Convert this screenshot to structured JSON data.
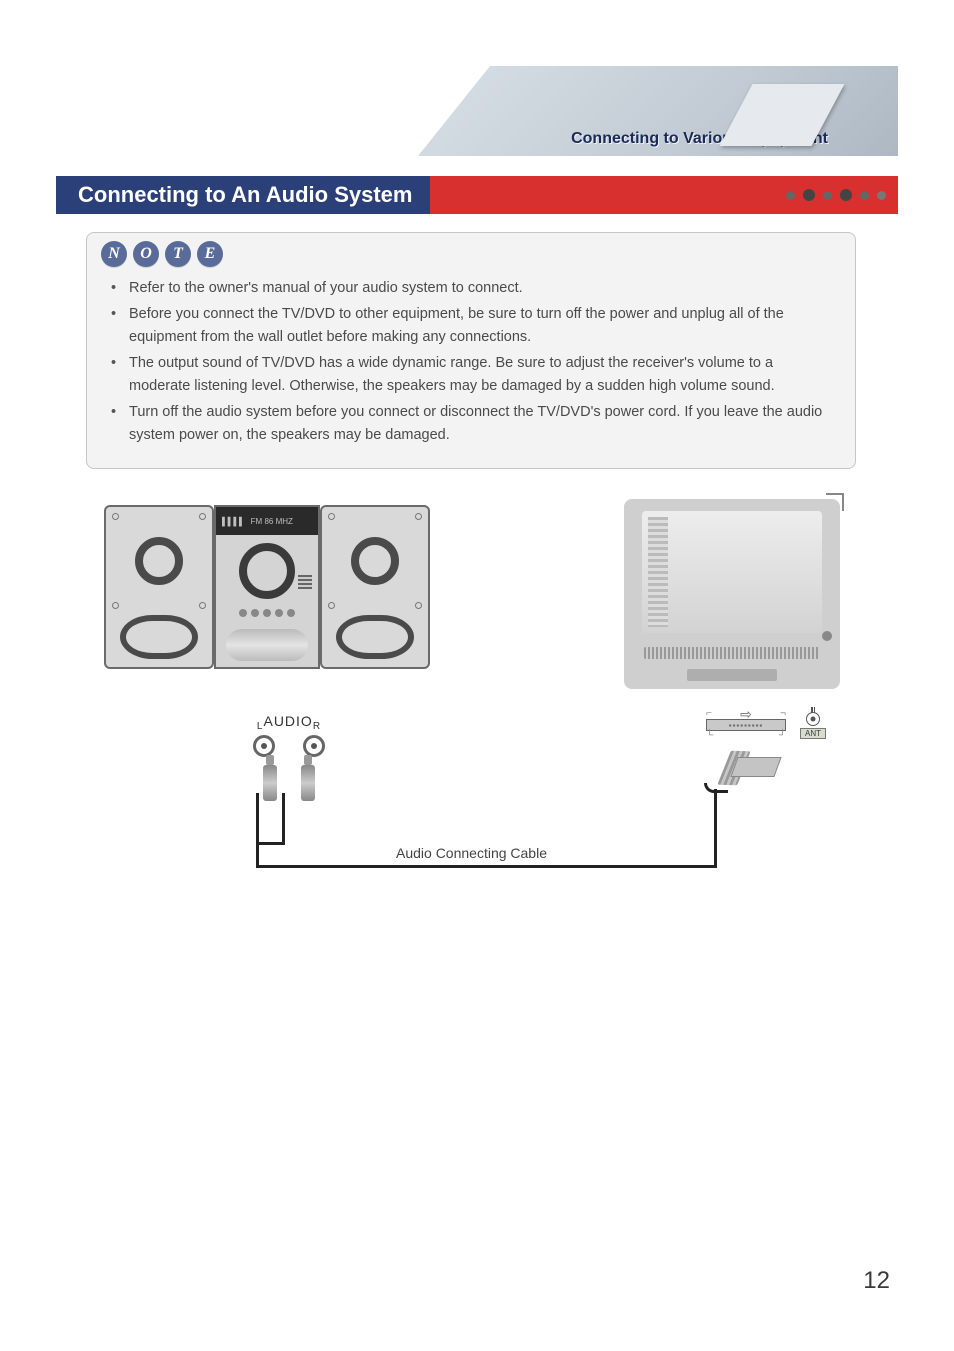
{
  "header": {
    "breadcrumb": "Connecting to Various Equipment"
  },
  "section": {
    "title": "Connecting to An Audio System"
  },
  "note": {
    "badge": [
      "N",
      "O",
      "T",
      "E"
    ],
    "items": [
      "Refer to the owner's manual of your audio system to connect.",
      "Before you connect the TV/DVD to other equipment, be  sure to turn off  the power  and unplug all of the equipment from the wall outlet before making any connections.",
      "The output sound  of TV/DVD has a wide dynamic range. Be sure to adjust the receiver's volume to a moderate listening level. Otherwise, the speakers may be damaged by a sudden high volume sound.",
      "Turn off the audio system before you connect or disconnect the TV/DVD's power cord. If you leave the audio system power on, the speakers may be damaged."
    ]
  },
  "diagram": {
    "audio_label_left": "L",
    "audio_label_center": "AUDIO",
    "audio_label_right": "R",
    "cable_label": "Audio Connecting Cable",
    "stereo_display": "FM 86  MHZ",
    "ant_label": "ANT",
    "arrow_out": "⇨"
  },
  "page_number": "12"
}
